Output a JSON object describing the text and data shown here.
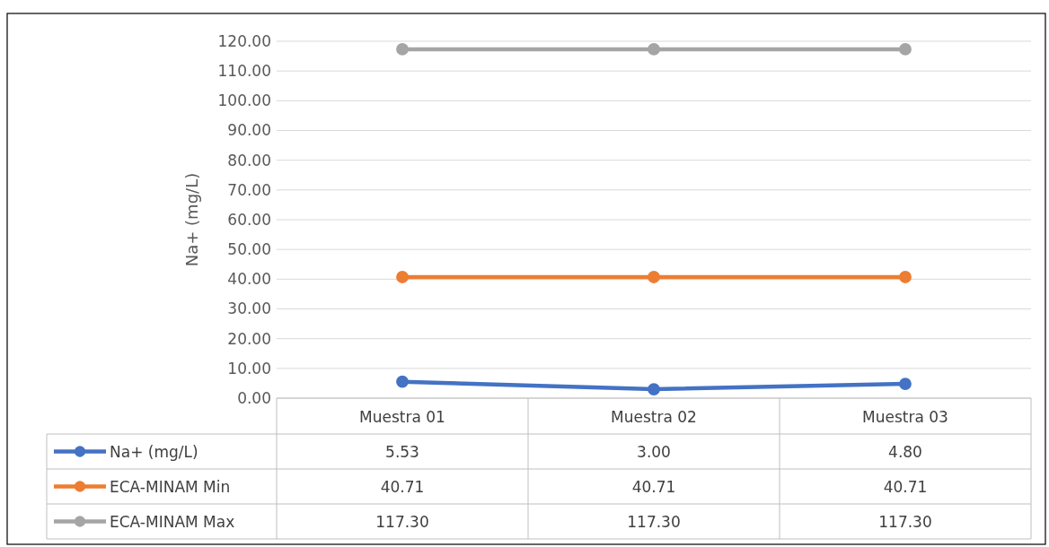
{
  "chart_data": {
    "type": "line",
    "ylabel": "Na+ (mg/L)",
    "categories": [
      "Muestra 01",
      "Muestra 02",
      "Muestra 03"
    ],
    "series": [
      {
        "name": "Na+ (mg/L)",
        "color": "#4472c4",
        "values": [
          5.53,
          3.0,
          4.8
        ],
        "value_labels": [
          "5.53",
          "3.00",
          "4.80"
        ]
      },
      {
        "name": "ECA-MINAM Min",
        "color": "#ed7d31",
        "values": [
          40.71,
          40.71,
          40.71
        ],
        "value_labels": [
          "40.71",
          "40.71",
          "40.71"
        ]
      },
      {
        "name": "ECA-MINAM Max",
        "color": "#a5a5a5",
        "values": [
          117.3,
          117.3,
          117.3
        ],
        "value_labels": [
          "117.30",
          "117.30",
          "117.30"
        ]
      }
    ],
    "ylim": [
      0,
      120
    ],
    "yticks": [
      {
        "value": 0,
        "label": "0.00"
      },
      {
        "value": 10,
        "label": "10.00"
      },
      {
        "value": 20,
        "label": "20.00"
      },
      {
        "value": 30,
        "label": "30.00"
      },
      {
        "value": 40,
        "label": "40.00"
      },
      {
        "value": 50,
        "label": "50.00"
      },
      {
        "value": 60,
        "label": "60.00"
      },
      {
        "value": 70,
        "label": "70.00"
      },
      {
        "value": 80,
        "label": "80.00"
      },
      {
        "value": 90,
        "label": "90.00"
      },
      {
        "value": 100,
        "label": "100.00"
      },
      {
        "value": 110,
        "label": "110.00"
      },
      {
        "value": 120,
        "label": "120.00"
      }
    ],
    "grid": "y",
    "legend": "bottom",
    "marker": "circle",
    "line_style": "solid"
  }
}
